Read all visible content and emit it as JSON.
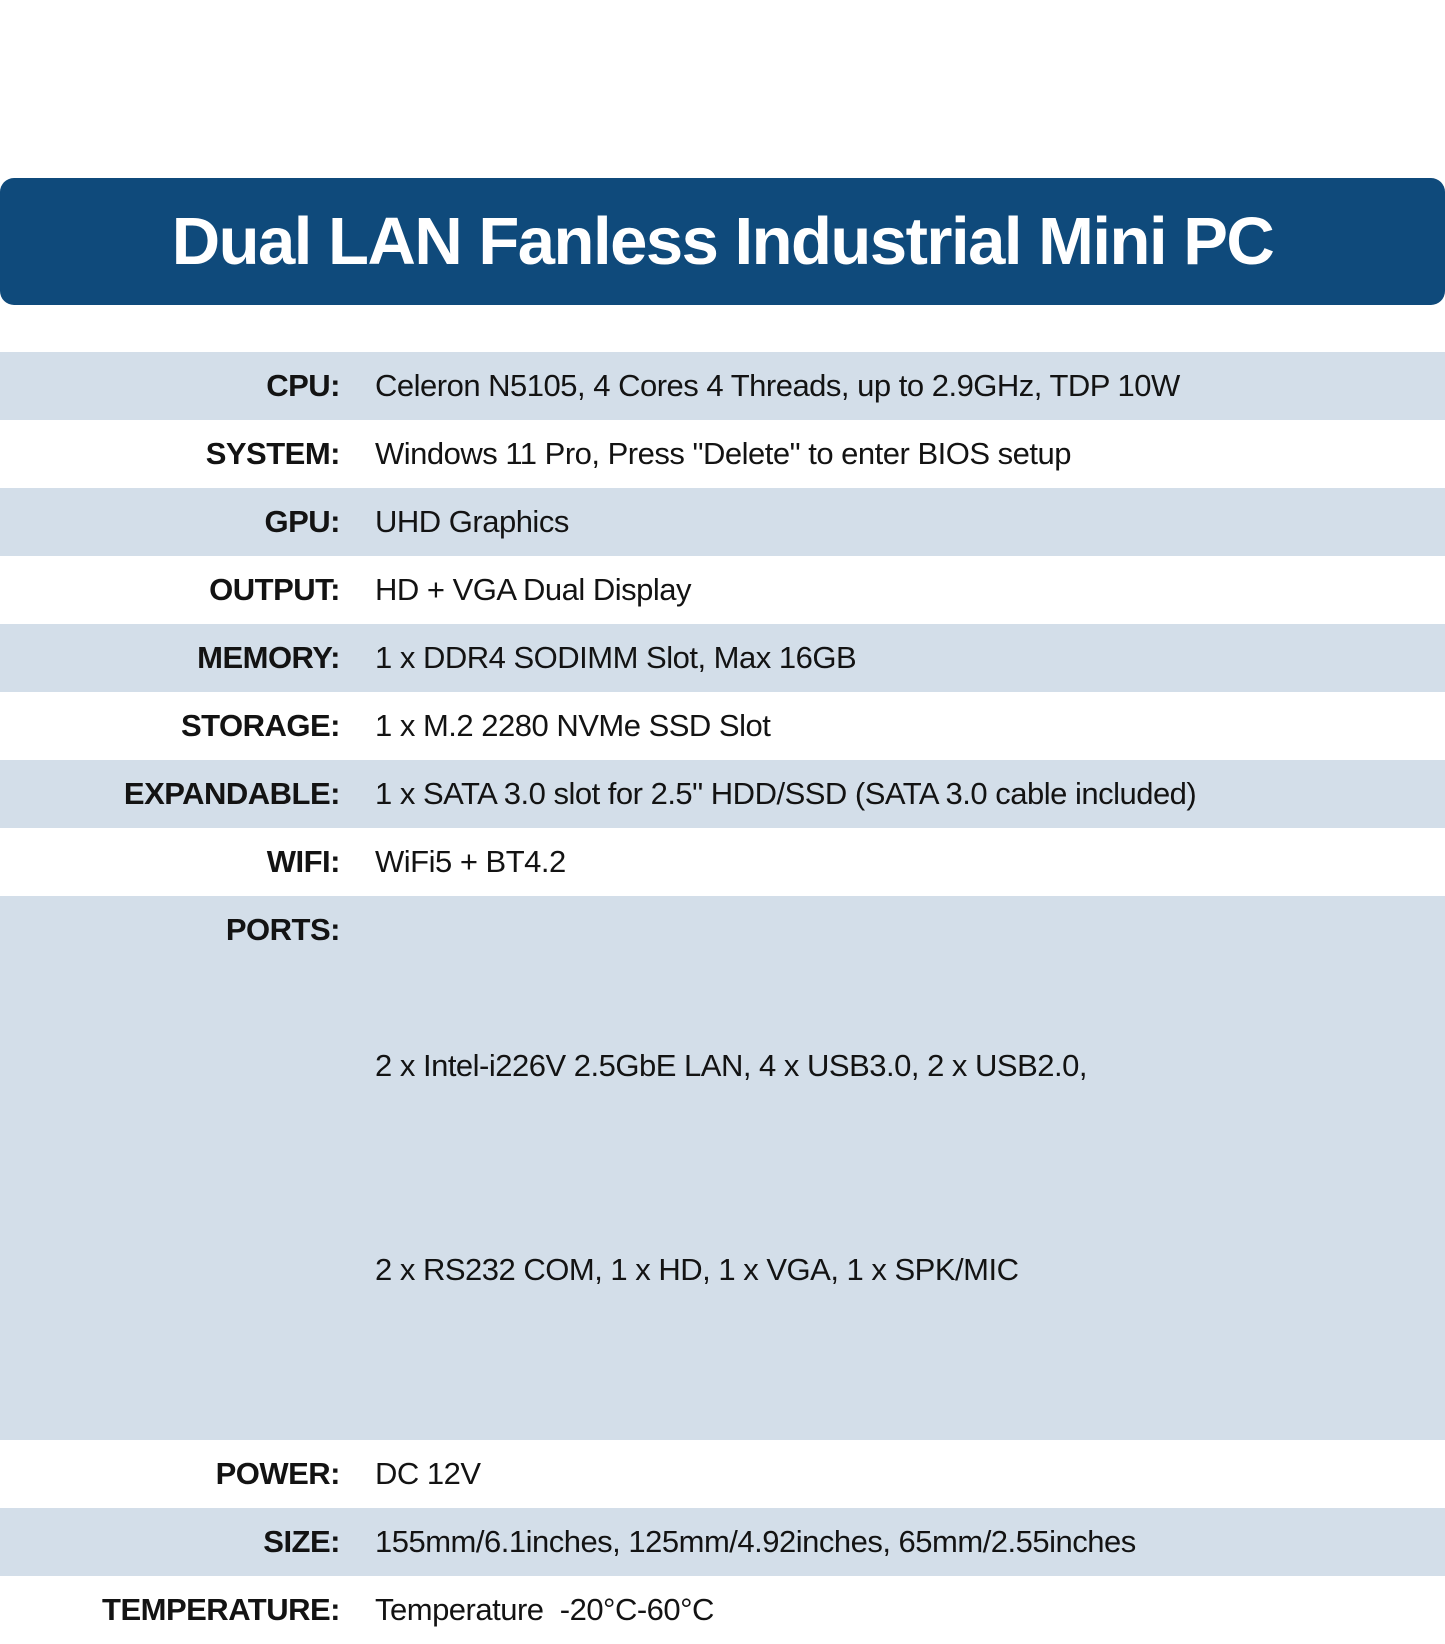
{
  "title": "Dual LAN Fanless Industrial Mini PC",
  "colors": {
    "banner_background": "#0F4A7B",
    "banner_text": "#FFFFFF",
    "row_alternate_background": "#D3DEE9",
    "row_background": "#FFFFFF",
    "body_text": "#131313"
  },
  "specs": [
    {
      "label": "CPU:",
      "value": "Celeron N5105, 4 Cores 4 Threads, up to 2.9GHz, TDP 10W"
    },
    {
      "label": "SYSTEM:",
      "value": "Windows 11 Pro, Press \"Delete\" to enter BIOS setup"
    },
    {
      "label": "GPU:",
      "value": "UHD Graphics"
    },
    {
      "label": "OUTPUT:",
      "value": "HD + VGA Dual Display"
    },
    {
      "label": "MEMORY:",
      "value": "1 x DDR4 SODIMM Slot, Max 16GB"
    },
    {
      "label": "STORAGE:",
      "value": "1 x M.2 2280 NVMe SSD Slot"
    },
    {
      "label": "EXPANDABLE:",
      "value": "1 x SATA 3.0 slot for 2.5\" HDD/SSD (SATA 3.0 cable included)"
    },
    {
      "label": "WIFI:",
      "value": "WiFi5 + BT4.2"
    },
    {
      "label": "PORTS:",
      "value": "2 x Intel-i226V 2.5GbE LAN, 4 x USB3.0, 2 x USB2.0,",
      "value2": "2 x RS232 COM, 1 x HD, 1 x VGA, 1 x SPK/MIC"
    },
    {
      "label": "POWER:",
      "value": "DC 12V"
    },
    {
      "label": "SIZE:",
      "value": "155mm/6.1inches, 125mm/4.92inches, 65mm/2.55inches"
    },
    {
      "label": "TEMPERATURE:",
      "value": "Temperature  -20°C-60°C"
    }
  ]
}
